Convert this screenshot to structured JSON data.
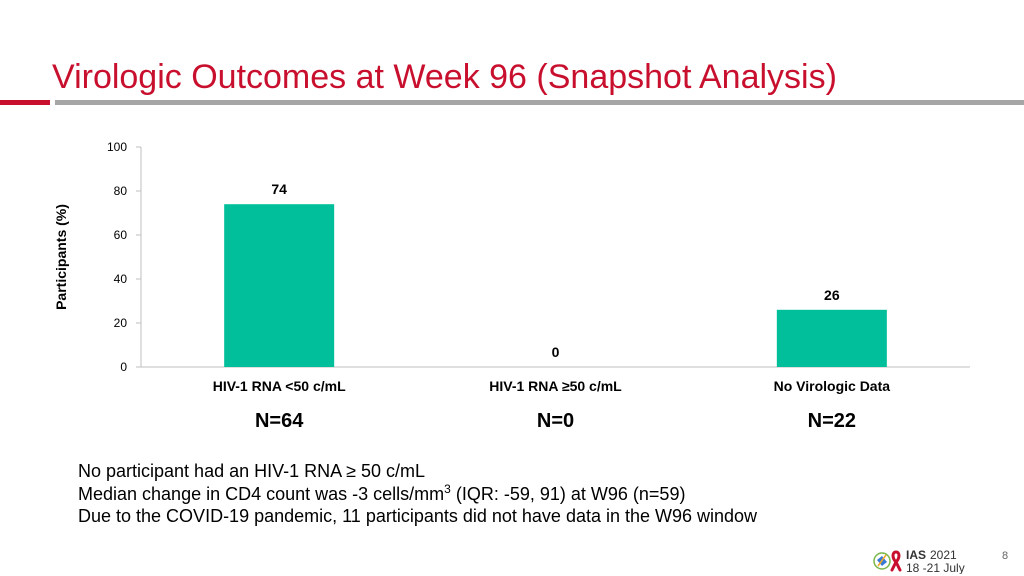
{
  "title": "Virologic Outcomes at Week 96 (Snapshot Analysis)",
  "colors": {
    "accent_red": "#c8102e",
    "bar": "#00bf9a",
    "rule_gray": "#a6a6a6"
  },
  "chart_data": {
    "type": "bar",
    "ylabel": "Participants (%)",
    "ylim": [
      0,
      100
    ],
    "yticks": [
      0,
      20,
      40,
      60,
      80,
      100
    ],
    "categories": [
      "HIV-1 RNA <50 c/mL",
      "HIV-1 RNA ≥50 c/mL",
      "No Virologic Data"
    ],
    "values": [
      74,
      0,
      26
    ],
    "data_labels": [
      "74",
      "0",
      "26"
    ],
    "n_labels": [
      "N=64",
      "N=0",
      "N=22"
    ],
    "grid": false
  },
  "notes": [
    "No participant had an HIV-1 RNA ≥ 50 c/mL",
    "Due to the COVID-19 pandemic, 11 participants did not have data in the W96 window"
  ],
  "cd4_note": {
    "before": "Median change in CD4 count was -3 cells/mm",
    "sup": "3",
    "after": " (IQR: -59, 91) at W96 (n=59)"
  },
  "logo": {
    "name": "IAS",
    "year": "2021",
    "dates": "18 -21 July",
    "icon": "conference-logo-icon"
  },
  "page_number": "8"
}
